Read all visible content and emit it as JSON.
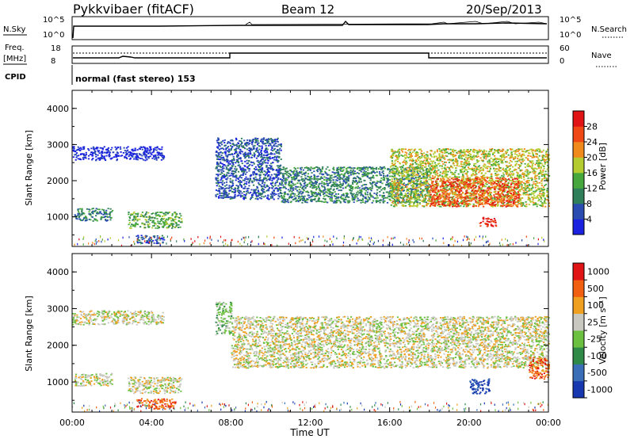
{
  "header": {
    "station": "Pykkvibaer (fitACF)",
    "beam": "Beam 12",
    "date": "20/Sep/2013"
  },
  "status_panel": {
    "nsky_label": "N.Sky",
    "nsky_ticks": [
      "10^5",
      "10^0"
    ],
    "nsearch_label": "N.Search",
    "nsearch_ticks": [
      "10^5",
      "10^0"
    ],
    "freq_label": "Freq.",
    "freq_unit": "[MHz]",
    "freq_ticks": [
      "18",
      "8"
    ],
    "nave_label": "Nave",
    "nave_ticks": [
      "60",
      "0"
    ],
    "cpid_label": "CPID",
    "cpid_text": "normal (fast stereo) 153"
  },
  "chart_data": [
    {
      "type": "heatmap",
      "title": "Power",
      "ylabel": "Slant Range [km]",
      "ylim": [
        180,
        4500
      ],
      "yticks": [
        "1000",
        "2000",
        "3000",
        "4000"
      ],
      "xlim": [
        0,
        24
      ],
      "colorbar": {
        "label": "Power [dB]",
        "ticks": [
          "4",
          "8",
          "12",
          "16",
          "20",
          "24",
          "28"
        ],
        "colors": [
          "#1a22e0",
          "#2a4cb0",
          "#2f7f5a",
          "#46a83c",
          "#b5cc30",
          "#f08a1c",
          "#f04814",
          "#e01414"
        ]
      },
      "echo_regions": [
        {
          "t0": 0.0,
          "t1": 4.6,
          "r0": 2580,
          "r1": 2960,
          "level": 0
        },
        {
          "t0": 0.1,
          "t1": 2.0,
          "r0": 900,
          "r1": 1250,
          "level": 2
        },
        {
          "t0": 2.8,
          "t1": 5.5,
          "r0": 700,
          "r1": 1150,
          "level": 3
        },
        {
          "t0": 3.2,
          "t1": 4.6,
          "r0": 280,
          "r1": 500,
          "level": 1
        },
        {
          "t0": 7.2,
          "t1": 10.5,
          "r0": 1500,
          "r1": 3200,
          "level": 1
        },
        {
          "t0": 10.5,
          "t1": 18.0,
          "r0": 1400,
          "r1": 2400,
          "level": 2
        },
        {
          "t0": 16.0,
          "t1": 24.0,
          "r0": 1300,
          "r1": 2900,
          "level": 4
        },
        {
          "t0": 18.0,
          "t1": 22.5,
          "r0": 1300,
          "r1": 2100,
          "level": 6
        },
        {
          "t0": 20.5,
          "t1": 21.4,
          "r0": 750,
          "r1": 1000,
          "level": 7
        }
      ]
    },
    {
      "type": "heatmap",
      "title": "Velocity",
      "ylabel": "Slant Range [km]",
      "xlabel": "Time UT",
      "ylim": [
        180,
        4500
      ],
      "yticks": [
        "1000",
        "2000",
        "3000",
        "4000"
      ],
      "xlim": [
        0,
        24
      ],
      "xticks": [
        "00:00",
        "04:00",
        "08:00",
        "12:00",
        "16:00",
        "20:00",
        "00:00"
      ],
      "colorbar": {
        "label": "Velocity [m s⁻¹]",
        "ticks": [
          "1000",
          "500",
          "100",
          "25",
          "-25",
          "-100",
          "-500",
          "-1000"
        ],
        "colors": [
          "#1838b0",
          "#3a6fb8",
          "#2f8a48",
          "#6cc040",
          "#c8c8c0",
          "#f0a020",
          "#f06010",
          "#e01414"
        ]
      },
      "echo_regions": [
        {
          "t0": 0.0,
          "t1": 4.6,
          "r0": 2580,
          "r1": 2960,
          "level": 4
        },
        {
          "t0": 0.1,
          "t1": 2.0,
          "r0": 900,
          "r1": 1250,
          "level": 4
        },
        {
          "t0": 2.8,
          "t1": 5.5,
          "r0": 700,
          "r1": 1150,
          "level": 4
        },
        {
          "t0": 3.2,
          "t1": 5.2,
          "r0": 280,
          "r1": 560,
          "level": 6
        },
        {
          "t0": 7.2,
          "t1": 8.0,
          "r0": 2300,
          "r1": 3200,
          "level": 3
        },
        {
          "t0": 8.0,
          "t1": 24.0,
          "r0": 1400,
          "r1": 2800,
          "level": 4
        },
        {
          "t0": 20.0,
          "t1": 21.0,
          "r0": 700,
          "r1": 1100,
          "level": 0
        },
        {
          "t0": 23.0,
          "t1": 24.0,
          "r0": 1100,
          "r1": 1700,
          "level": 6
        }
      ]
    }
  ]
}
